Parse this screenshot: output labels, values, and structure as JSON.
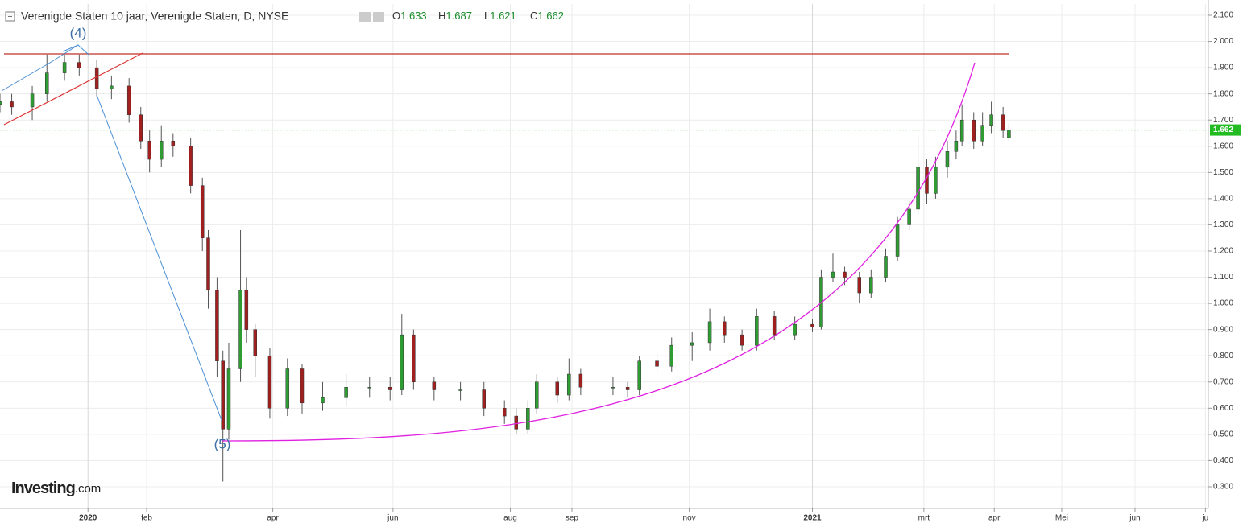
{
  "chart_data": {
    "type": "candlestick",
    "title": "Verenigde Staten 10 jaar, Verenigde Staten, D, NYSE",
    "ohlc": [
      {
        "label": "O",
        "value": 1.633
      },
      {
        "label": "H",
        "value": 1.687
      },
      {
        "label": "L",
        "value": 1.621
      },
      {
        "label": "C",
        "value": 1.662
      }
    ],
    "annotations": [
      "(4)",
      "(5)"
    ],
    "logo": {
      "main": "Investing",
      "suffix": ".com"
    },
    "last": {
      "value": 1.662,
      "color": "#22bb22"
    },
    "up_color": "#2f9c33",
    "down_color": "#a01f1f",
    "grid": true,
    "xlim": [
      0,
      412
    ],
    "xticks": [
      {
        "value": 30,
        "label": "2020"
      },
      {
        "value": 50,
        "label": "feb"
      },
      {
        "value": 93,
        "label": "apr"
      },
      {
        "value": 134,
        "label": "jun"
      },
      {
        "value": 174,
        "label": "aug"
      },
      {
        "value": 195,
        "label": "sep"
      },
      {
        "value": 235,
        "label": "nov"
      },
      {
        "value": 277,
        "label": "2021"
      },
      {
        "value": 315,
        "label": "mrt"
      },
      {
        "value": 339,
        "label": "apr"
      },
      {
        "value": 362,
        "label": "Mei"
      },
      {
        "value": 387,
        "label": "jun"
      },
      {
        "value": 411,
        "label": "ju"
      }
    ],
    "ylim": [
      0.217,
      2.143
    ],
    "yticks": [
      {
        "value": 0.3,
        "label": "0.300"
      },
      {
        "value": 0.4,
        "label": "0.400"
      },
      {
        "value": 0.5,
        "label": "0.500"
      },
      {
        "value": 0.6,
        "label": "0.600"
      },
      {
        "value": 0.7,
        "label": "0.700"
      },
      {
        "value": 0.8,
        "label": "0.800"
      },
      {
        "value": 0.9,
        "label": "0.900"
      },
      {
        "value": 1.0,
        "label": "1.000"
      },
      {
        "value": 1.1,
        "label": "1.100"
      },
      {
        "value": 1.2,
        "label": "1.200"
      },
      {
        "value": 1.3,
        "label": "1.300"
      },
      {
        "value": 1.4,
        "label": "1.400"
      },
      {
        "value": 1.5,
        "label": "1.500"
      },
      {
        "value": 1.6,
        "label": "1.600"
      },
      {
        "value": 1.7,
        "label": "1.700"
      },
      {
        "value": 1.8,
        "label": "1.800"
      },
      {
        "value": 1.9,
        "label": "1.900"
      },
      {
        "value": 2.0,
        "label": "2.000"
      },
      {
        "value": 2.1,
        "label": "2.100"
      }
    ],
    "x": [
      0,
      4,
      11,
      16,
      22,
      27,
      33,
      38,
      44,
      48,
      51,
      55,
      59,
      65,
      69,
      71,
      74,
      76,
      78,
      82,
      84,
      87,
      92,
      98,
      103,
      110,
      118,
      126,
      133,
      137,
      141,
      148,
      157,
      165,
      172,
      176,
      180,
      183,
      190,
      194,
      198,
      209,
      214,
      218,
      224,
      229,
      236,
      242,
      247,
      253,
      258,
      264,
      271,
      277,
      280,
      284,
      288,
      293,
      297,
      302,
      306,
      310,
      313,
      316,
      319,
      323,
      326,
      328,
      332,
      335,
      338,
      342,
      344
    ],
    "open": [
      1.76,
      1.77,
      1.75,
      1.8,
      1.88,
      1.92,
      1.9,
      1.82,
      1.83,
      1.72,
      1.62,
      1.55,
      1.62,
      1.6,
      1.45,
      1.25,
      1.05,
      0.78,
      0.52,
      0.75,
      1.05,
      0.9,
      0.8,
      0.6,
      0.75,
      0.62,
      0.64,
      0.68,
      0.68,
      0.67,
      0.88,
      0.7,
      0.67,
      0.67,
      0.6,
      0.57,
      0.52,
      0.6,
      0.7,
      0.65,
      0.73,
      0.68,
      0.68,
      0.67,
      0.78,
      0.76,
      0.84,
      0.85,
      0.93,
      0.88,
      0.84,
      0.95,
      0.88,
      0.92,
      0.91,
      1.1,
      1.12,
      1.1,
      1.04,
      1.1,
      1.18,
      1.3,
      1.36,
      1.52,
      1.42,
      1.52,
      1.58,
      1.62,
      1.7,
      1.62,
      1.68,
      1.72,
      1.633
    ],
    "high": [
      1.8,
      1.8,
      1.83,
      1.95,
      1.95,
      1.95,
      1.93,
      1.87,
      1.86,
      1.75,
      1.66,
      1.68,
      1.65,
      1.63,
      1.48,
      1.28,
      1.1,
      0.82,
      0.85,
      1.28,
      1.1,
      0.92,
      0.83,
      0.79,
      0.77,
      0.7,
      0.73,
      0.72,
      0.72,
      0.96,
      0.9,
      0.72,
      0.7,
      0.7,
      0.63,
      0.6,
      0.63,
      0.73,
      0.72,
      0.79,
      0.75,
      0.72,
      0.7,
      0.8,
      0.81,
      0.87,
      0.89,
      0.98,
      0.95,
      0.9,
      0.98,
      0.97,
      0.95,
      0.94,
      1.13,
      1.19,
      1.14,
      1.12,
      1.13,
      1.21,
      1.33,
      1.39,
      1.64,
      1.55,
      1.56,
      1.62,
      1.66,
      1.76,
      1.73,
      1.73,
      1.77,
      1.75,
      1.687
    ],
    "low": [
      1.73,
      1.72,
      1.7,
      1.77,
      1.85,
      1.87,
      1.79,
      1.78,
      1.69,
      1.59,
      1.5,
      1.52,
      1.56,
      1.42,
      1.2,
      0.98,
      0.72,
      0.32,
      0.48,
      0.7,
      0.85,
      0.72,
      0.56,
      0.57,
      0.58,
      0.59,
      0.61,
      0.64,
      0.63,
      0.65,
      0.67,
      0.63,
      0.63,
      0.57,
      0.54,
      0.5,
      0.5,
      0.58,
      0.62,
      0.63,
      0.65,
      0.65,
      0.64,
      0.65,
      0.73,
      0.74,
      0.78,
      0.82,
      0.85,
      0.82,
      0.82,
      0.86,
      0.86,
      0.89,
      0.9,
      1.08,
      1.07,
      1.0,
      1.02,
      1.08,
      1.16,
      1.28,
      1.34,
      1.38,
      1.4,
      1.48,
      1.55,
      1.6,
      1.59,
      1.6,
      1.65,
      1.63,
      1.621
    ],
    "close": [
      1.77,
      1.75,
      1.8,
      1.88,
      1.92,
      1.9,
      1.82,
      1.83,
      1.72,
      1.62,
      1.55,
      1.62,
      1.6,
      1.45,
      1.25,
      1.05,
      0.78,
      0.52,
      0.75,
      1.05,
      0.9,
      0.8,
      0.6,
      0.75,
      0.62,
      0.64,
      0.68,
      0.68,
      0.67,
      0.88,
      0.7,
      0.67,
      0.67,
      0.6,
      0.57,
      0.52,
      0.6,
      0.7,
      0.65,
      0.73,
      0.68,
      0.68,
      0.67,
      0.78,
      0.76,
      0.84,
      0.85,
      0.93,
      0.88,
      0.84,
      0.95,
      0.88,
      0.92,
      0.91,
      1.1,
      1.12,
      1.1,
      1.04,
      1.1,
      1.18,
      1.3,
      1.36,
      1.52,
      1.42,
      1.52,
      1.58,
      1.62,
      1.7,
      1.62,
      1.68,
      1.72,
      1.66,
      1.662
    ]
  }
}
